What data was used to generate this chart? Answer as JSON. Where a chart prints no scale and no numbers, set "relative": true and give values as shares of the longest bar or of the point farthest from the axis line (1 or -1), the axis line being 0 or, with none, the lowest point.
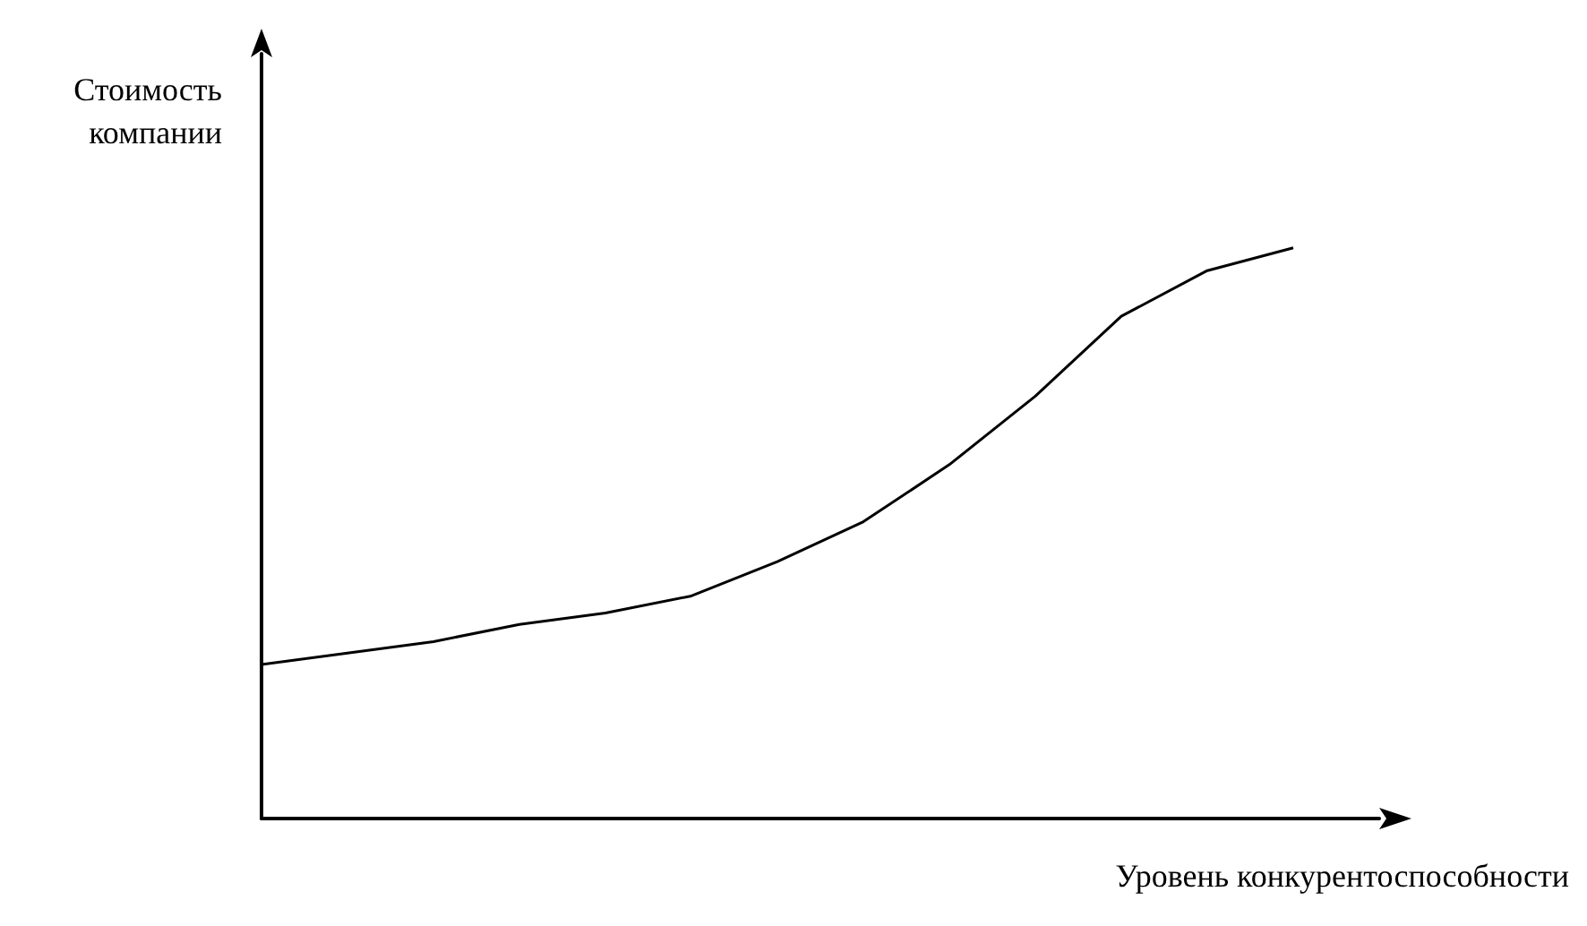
{
  "chart_data": {
    "type": "line",
    "relative": true,
    "xlabel": "Уровень конкурентоспособности",
    "ylabel": "Стоимость компании",
    "color": "#000000",
    "marker": "none",
    "grid": false,
    "categories": [
      null,
      null,
      null,
      null,
      null,
      null,
      null,
      null,
      null,
      null,
      null,
      null,
      null,
      null
    ],
    "values": [
      0.27,
      0.29,
      0.31,
      0.34,
      0.36,
      0.39,
      0.45,
      0.52,
      0.62,
      0.74,
      0.88,
      0.96,
      1,
      null
    ]
  }
}
